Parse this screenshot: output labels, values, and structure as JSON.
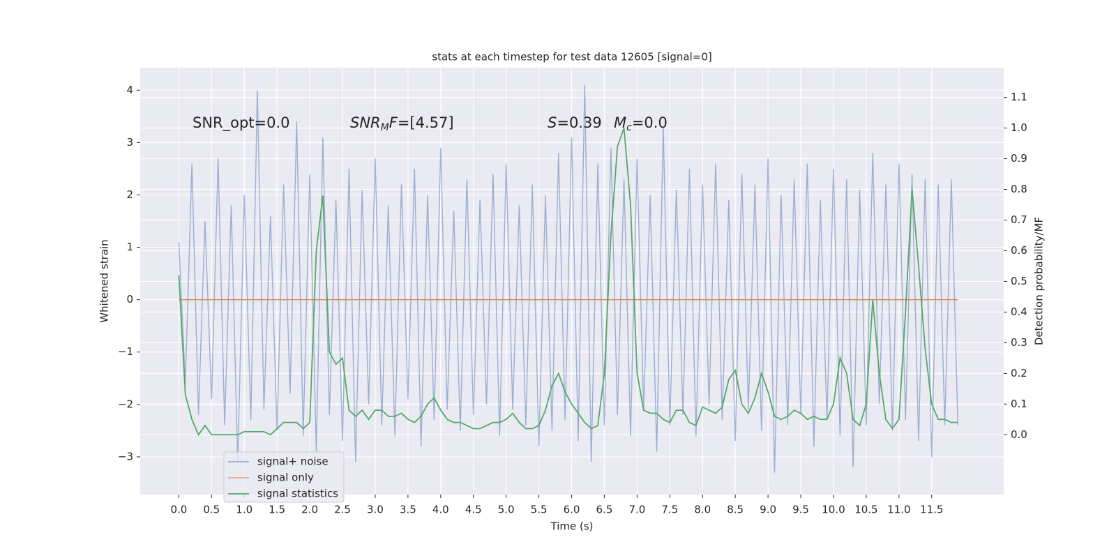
{
  "chart_data": {
    "type": "line",
    "title": "stats at each timestep for test data 12605 [signal=0]",
    "x_label": "Time (s)",
    "y_label": "Whitened strain",
    "y2_label": "Detection probability/MF",
    "annotations": [
      [
        {
          "text": "SNR_opt=0.0"
        }
      ],
      [
        {
          "text": "SNR",
          "italic": true
        },
        {
          "text": "M",
          "italic": true,
          "sub": true
        },
        {
          "text": "F",
          "italic": true
        },
        {
          "text": "=[4.57]"
        }
      ],
      [
        {
          "text": "S",
          "italic": true
        },
        {
          "text": "=0.39"
        }
      ],
      [
        {
          "text": "M",
          "italic": true
        },
        {
          "text": "c",
          "italic": true,
          "sub": true
        },
        {
          "text": "=0.0"
        }
      ]
    ],
    "x": [
      0.0,
      0.1,
      0.2,
      0.3,
      0.4,
      0.5,
      0.6,
      0.7,
      0.8,
      0.9,
      1.0,
      1.1,
      1.2,
      1.3,
      1.4,
      1.5,
      1.6,
      1.7,
      1.8,
      1.9,
      2.0,
      2.1,
      2.2,
      2.3,
      2.4,
      2.5,
      2.6,
      2.7,
      2.8,
      2.9,
      3.0,
      3.1,
      3.2,
      3.3,
      3.4,
      3.5,
      3.6,
      3.7,
      3.8,
      3.9,
      4.0,
      4.1,
      4.2,
      4.3,
      4.4,
      4.5,
      4.6,
      4.7,
      4.8,
      4.9,
      5.0,
      5.1,
      5.2,
      5.3,
      5.4,
      5.5,
      5.6,
      5.7,
      5.8,
      5.9,
      6.0,
      6.1,
      6.2,
      6.3,
      6.4,
      6.5,
      6.6,
      6.7,
      6.8,
      6.9,
      7.0,
      7.1,
      7.2,
      7.3,
      7.4,
      7.5,
      7.6,
      7.7,
      7.8,
      7.9,
      8.0,
      8.1,
      8.2,
      8.3,
      8.4,
      8.5,
      8.6,
      8.7,
      8.8,
      8.9,
      9.0,
      9.1,
      9.2,
      9.3,
      9.4,
      9.5,
      9.6,
      9.7,
      9.8,
      9.9,
      10.0,
      10.1,
      10.2,
      10.3,
      10.4,
      10.5,
      10.6,
      10.7,
      10.8,
      10.9,
      11.0,
      11.1,
      11.2,
      11.3,
      11.4,
      11.5,
      11.6,
      11.7,
      11.8,
      11.9
    ],
    "series": [
      {
        "name": "signal+ noise",
        "color": "#4c72b0",
        "opacity": 0.5,
        "axis": "y",
        "values": [
          1.1,
          -1.6,
          2.6,
          -2.2,
          1.5,
          -1.9,
          2.7,
          -2.4,
          1.8,
          -3.1,
          2.0,
          -2.3,
          4.0,
          -2.1,
          1.6,
          -2.5,
          2.2,
          -1.8,
          3.4,
          -2.6,
          2.4,
          -2.9,
          3.1,
          -2.2,
          1.9,
          -2.7,
          2.5,
          -3.1,
          2.1,
          -2.0,
          2.7,
          -2.4,
          1.8,
          -2.6,
          2.2,
          -1.9,
          2.5,
          -2.8,
          2.0,
          -2.3,
          2.9,
          -2.1,
          1.7,
          -2.5,
          2.3,
          -2.2,
          1.9,
          -2.0,
          2.4,
          -2.6,
          2.6,
          -2.1,
          1.8,
          -2.4,
          2.2,
          -2.8,
          2.0,
          -2.5,
          2.8,
          -2.3,
          3.1,
          -2.7,
          4.1,
          -3.1,
          2.6,
          -2.4,
          2.9,
          -2.2,
          2.3,
          -2.6,
          2.7,
          -2.1,
          2.0,
          -2.9,
          3.3,
          -2.4,
          2.1,
          -2.2,
          2.5,
          -2.6,
          2.2,
          -2.0,
          2.6,
          -2.3,
          1.9,
          -2.7,
          2.4,
          -2.1,
          2.2,
          -2.5,
          2.7,
          -3.3,
          2.0,
          -2.4,
          2.3,
          -2.2,
          2.6,
          -2.8,
          1.9,
          -2.3,
          2.5,
          -2.6,
          2.3,
          -3.2,
          2.1,
          -2.4,
          2.8,
          -2.0,
          2.2,
          -2.5,
          2.6,
          -2.3,
          2.4,
          -2.7,
          2.3,
          -3.0,
          2.2,
          -2.4,
          2.3,
          -2.4
        ]
      },
      {
        "name": "signal only",
        "color": "#dd8452",
        "axis": "y",
        "values": [
          0,
          0,
          0,
          0,
          0,
          0,
          0,
          0,
          0,
          0,
          0,
          0,
          0,
          0,
          0,
          0,
          0,
          0,
          0,
          0,
          0,
          0,
          0,
          0,
          0,
          0,
          0,
          0,
          0,
          0,
          0,
          0,
          0,
          0,
          0,
          0,
          0,
          0,
          0,
          0,
          0,
          0,
          0,
          0,
          0,
          0,
          0,
          0,
          0,
          0,
          0,
          0,
          0,
          0,
          0,
          0,
          0,
          0,
          0,
          0,
          0,
          0,
          0,
          0,
          0,
          0,
          0,
          0,
          0,
          0,
          0,
          0,
          0,
          0,
          0,
          0,
          0,
          0,
          0,
          0,
          0,
          0,
          0,
          0,
          0,
          0,
          0,
          0,
          0,
          0,
          0,
          0,
          0,
          0,
          0,
          0,
          0,
          0,
          0,
          0,
          0,
          0,
          0,
          0,
          0,
          0,
          0,
          0,
          0,
          0,
          0,
          0,
          0,
          0,
          0,
          0,
          0,
          0,
          0,
          0
        ]
      },
      {
        "name": "signal statistics",
        "color": "#55a868",
        "axis": "y2",
        "values": [
          0.52,
          0.13,
          0.05,
          0.0,
          0.03,
          0.0,
          0.0,
          0.0,
          0.0,
          0.0,
          0.01,
          0.01,
          0.01,
          0.01,
          0.0,
          0.02,
          0.04,
          0.04,
          0.04,
          0.02,
          0.04,
          0.6,
          0.78,
          0.27,
          0.23,
          0.25,
          0.08,
          0.06,
          0.08,
          0.05,
          0.08,
          0.08,
          0.06,
          0.06,
          0.07,
          0.05,
          0.04,
          0.06,
          0.1,
          0.12,
          0.08,
          0.05,
          0.04,
          0.04,
          0.03,
          0.02,
          0.02,
          0.03,
          0.04,
          0.04,
          0.05,
          0.07,
          0.04,
          0.02,
          0.02,
          0.03,
          0.08,
          0.16,
          0.2,
          0.14,
          0.1,
          0.07,
          0.04,
          0.02,
          0.03,
          0.2,
          0.65,
          0.94,
          1.0,
          0.75,
          0.2,
          0.08,
          0.07,
          0.07,
          0.05,
          0.04,
          0.08,
          0.08,
          0.04,
          0.03,
          0.09,
          0.08,
          0.07,
          0.09,
          0.18,
          0.21,
          0.1,
          0.07,
          0.12,
          0.2,
          0.14,
          0.06,
          0.05,
          0.06,
          0.08,
          0.07,
          0.05,
          0.06,
          0.05,
          0.05,
          0.1,
          0.25,
          0.2,
          0.05,
          0.03,
          0.1,
          0.44,
          0.2,
          0.05,
          0.02,
          0.05,
          0.4,
          0.8,
          0.55,
          0.28,
          0.1,
          0.05,
          0.05,
          0.04,
          0.04
        ]
      }
    ],
    "xlim": [
      -0.59,
      12.6
    ],
    "ylim": [
      -3.72,
      4.43
    ],
    "y2lim": [
      -0.195,
      1.197
    ],
    "xticks": [
      {
        "value": 0,
        "label": "0.0"
      },
      {
        "value": 0.5,
        "label": "0.5"
      },
      {
        "value": 1,
        "label": "1.0"
      },
      {
        "value": 1.5,
        "label": "1.5"
      },
      {
        "value": 2,
        "label": "2.0"
      },
      {
        "value": 2.5,
        "label": "2.5"
      },
      {
        "value": 3,
        "label": "3.0"
      },
      {
        "value": 3.5,
        "label": "3.5"
      },
      {
        "value": 4,
        "label": "4.0"
      },
      {
        "value": 4.5,
        "label": "4.5"
      },
      {
        "value": 5,
        "label": "5.0"
      },
      {
        "value": 5.5,
        "label": "5.5"
      },
      {
        "value": 6,
        "label": "6.0"
      },
      {
        "value": 6.5,
        "label": "6.5"
      },
      {
        "value": 7,
        "label": "7.0"
      },
      {
        "value": 7.5,
        "label": "7.5"
      },
      {
        "value": 8,
        "label": "8.0"
      },
      {
        "value": 8.5,
        "label": "8.5"
      },
      {
        "value": 9,
        "label": "9.0"
      },
      {
        "value": 9.5,
        "label": "9.5"
      },
      {
        "value": 10,
        "label": "10.0"
      },
      {
        "value": 10.5,
        "label": "10.5"
      },
      {
        "value": 11,
        "label": "11.0"
      },
      {
        "value": 11.5,
        "label": "11.5"
      }
    ],
    "yticks": [
      {
        "value": -3,
        "label": "−3"
      },
      {
        "value": -2,
        "label": "−2"
      },
      {
        "value": -1,
        "label": "−1"
      },
      0,
      1,
      2,
      3,
      4
    ],
    "y2ticks": [
      {
        "value": 0,
        "label": "0.0"
      },
      {
        "value": 0.1,
        "label": "0.1"
      },
      {
        "value": 0.2,
        "label": "0.2"
      },
      {
        "value": 0.3,
        "label": "0.3"
      },
      {
        "value": 0.4,
        "label": "0.4"
      },
      {
        "value": 0.5,
        "label": "0.5"
      },
      {
        "value": 0.6,
        "label": "0.6"
      },
      {
        "value": 0.7,
        "label": "0.7"
      },
      {
        "value": 0.8,
        "label": "0.8"
      },
      {
        "value": 0.9,
        "label": "0.9"
      },
      {
        "value": 1,
        "label": "1.0"
      },
      {
        "value": 1.1,
        "label": "1.1"
      }
    ],
    "grid": true,
    "legend": "lower left"
  }
}
